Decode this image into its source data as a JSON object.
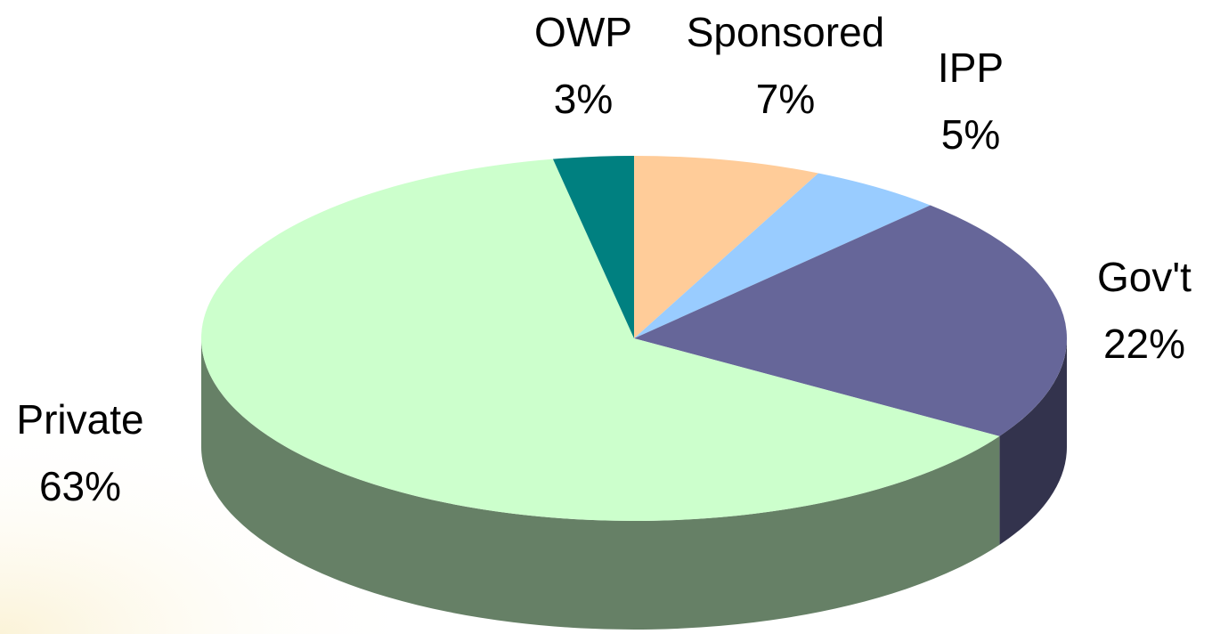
{
  "chart_data": {
    "type": "pie",
    "categories": [
      "Sponsored",
      "IPP",
      "Gov't",
      "Private",
      "OWP"
    ],
    "values": [
      7,
      5,
      22,
      63,
      3
    ],
    "value_labels": [
      "7%",
      "5%",
      "22%",
      "63%",
      "3%"
    ],
    "colors": [
      "#ffcc99",
      "#99ccff",
      "#666699",
      "#ccffcc",
      "#008080"
    ]
  }
}
